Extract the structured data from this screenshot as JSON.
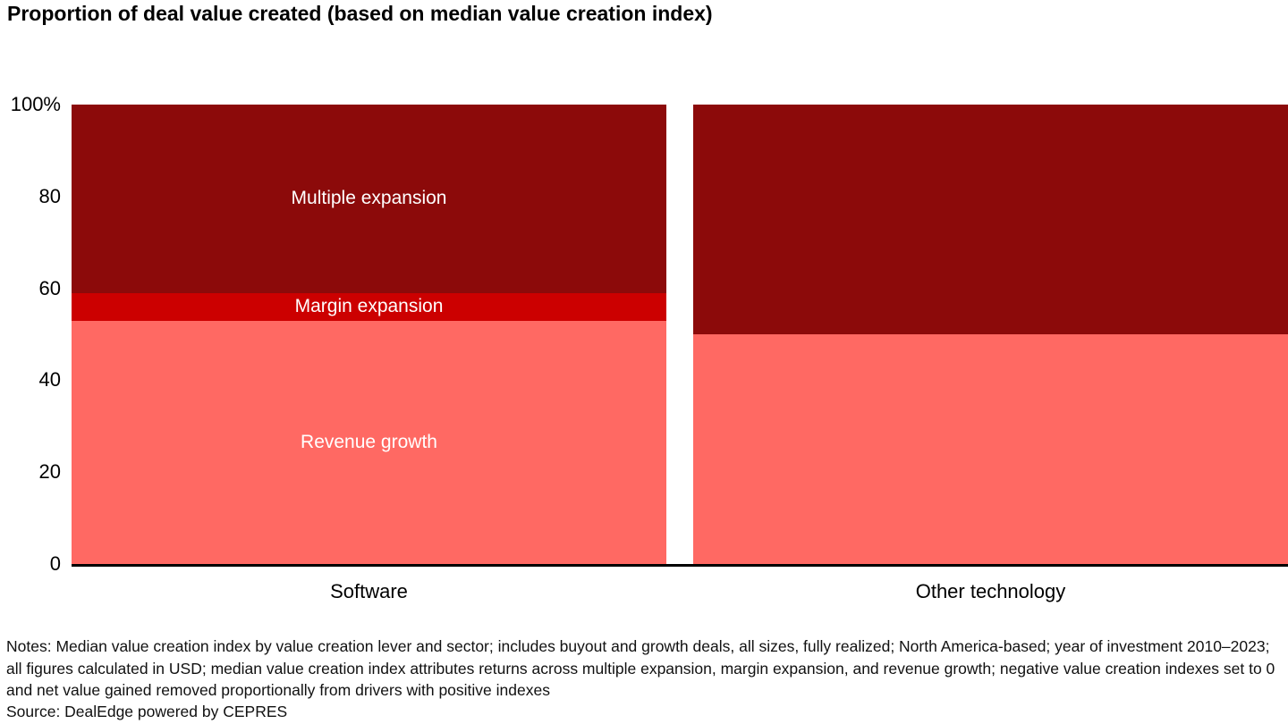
{
  "title": "Proportion of deal value created (based on median value creation index)",
  "chart_data": {
    "type": "bar",
    "stacked": true,
    "categories": [
      "Software",
      "Other technology"
    ],
    "series": [
      {
        "name": "Revenue growth",
        "color": "#ff6963",
        "values": [
          53,
          50
        ]
      },
      {
        "name": "Margin expansion",
        "color": "#cc0000",
        "values": [
          6,
          0
        ]
      },
      {
        "name": "Multiple expansion",
        "color": "#8c0a0a",
        "values": [
          41,
          50
        ]
      }
    ],
    "y_axis": {
      "ticks": [
        "100%",
        "80",
        "60",
        "40",
        "20",
        "0"
      ],
      "tick_values": [
        100,
        80,
        60,
        40,
        20,
        0
      ],
      "max": 100,
      "grid": false
    },
    "labels_shown_on": "Software",
    "legend_position": "none",
    "title": "Proportion of deal value created (based on median value creation index)"
  },
  "notes": "Notes: Median value creation index by value creation lever and sector; includes buyout and growth deals, all sizes, fully realized; North America-based; year of investment 2010–2023; all figures calculated in USD; median value creation index attributes returns across multiple expansion, margin expansion, and revenue growth; negative value creation indexes set to 0 and net value gained removed proportionally from drivers with positive indexes",
  "source": "Source: DealEdge powered by CEPRES"
}
